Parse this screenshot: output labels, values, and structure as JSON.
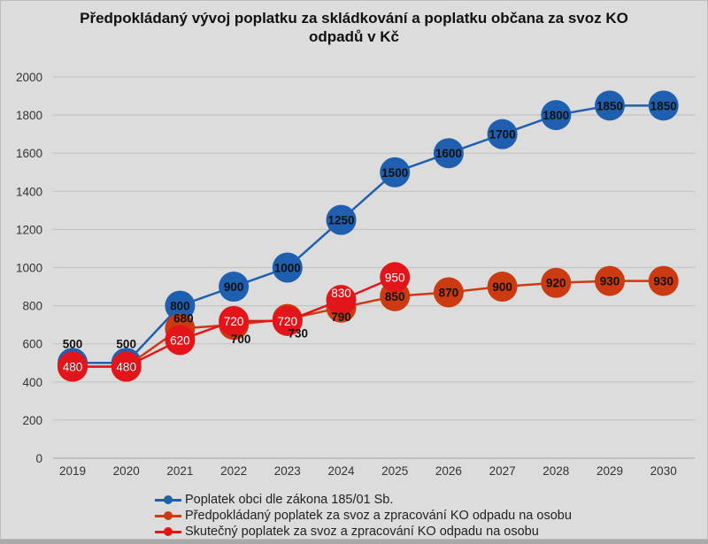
{
  "chart_data": {
    "type": "line",
    "title": "Předpokládaný vývoj poplatku za skládkování a poplatku občana za svoz KO odpadů v Kč",
    "title_lines": [
      "Předpokládaný vývoj poplatku za skládkování a poplatku občana za svoz KO",
      "odpadů v Kč"
    ],
    "xlabel": "",
    "ylabel": "",
    "x": [
      "2019",
      "2020",
      "2021",
      "2022",
      "2023",
      "2024",
      "2025",
      "2026",
      "2027",
      "2028",
      "2029",
      "2030"
    ],
    "ylim": [
      0,
      2000
    ],
    "yticks": [
      0,
      200,
      400,
      600,
      800,
      1000,
      1200,
      1400,
      1600,
      1800,
      2000
    ],
    "grid": true,
    "legend_position": "bottom",
    "series": [
      {
        "name": "Poplatek obci dle zákona 185/01 Sb.",
        "color": "#1f5fb0",
        "label_color": "#111111",
        "values": [
          500,
          500,
          800,
          900,
          1000,
          1250,
          1500,
          1600,
          1700,
          1800,
          1850,
          1850
        ]
      },
      {
        "name": "Předpokládaný poplatek za svoz a zpracování KO odpadu na osobu",
        "color": "#cc3a12",
        "label_color": "#111111",
        "values": [
          480,
          480,
          680,
          700,
          730,
          790,
          850,
          870,
          900,
          920,
          930,
          930
        ]
      },
      {
        "name": "Skutečný poplatek za svoz a zpracování KO odpadu na osobu",
        "color": "#e3151a",
        "label_color": "#ffffff",
        "values": [
          480,
          480,
          620,
          720,
          720,
          830,
          950,
          null,
          null,
          null,
          null,
          null
        ]
      }
    ]
  }
}
